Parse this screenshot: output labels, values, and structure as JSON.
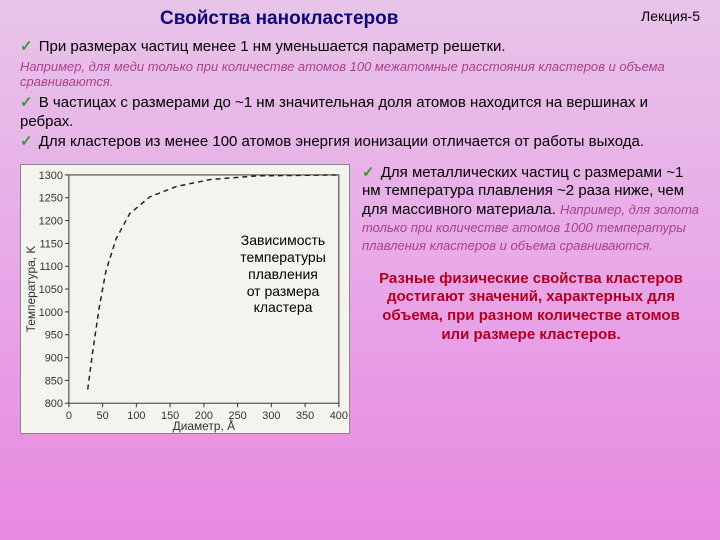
{
  "header": {
    "title": "Свойства нанокластеров",
    "lecture": "Лекция-5"
  },
  "bullets": {
    "b1": "При размерах частиц менее 1 нм уменьшается параметр решетки.",
    "b1_note": "Например, для меди только при количестве атомов 100 межатомные расстояния кластеров и объема сравниваются.",
    "b2": "В частицах с размерами до ~1 нм значительная доля атомов находится на вершинах и ребрах.",
    "b3": "Для кластеров из менее 100 атомов энергия ионизации отличается от работы выхода.",
    "b4_main": "Для металлических частиц с размерами ~1 нм температура плавления ~2 раза ниже, чем для массивного материала.",
    "b4_note": " Например, для золота только при количестве атомов 1000 температуры плавления кластеров и объема сравниваются."
  },
  "conclusion": "Разные физические свойства кластеров достигают значений, характерных для объема, при разном количестве атомов или размере кластеров.",
  "chart": {
    "caption_l1": "Зависимость",
    "caption_l2": "температуры",
    "caption_l3": "плавления",
    "caption_l4": "от размера",
    "caption_l5": "кластера",
    "y_label": "Температура, K",
    "x_label": "Диаметр, Å",
    "y_ticks": [
      "800",
      "850",
      "900",
      "950",
      "1000",
      "1050",
      "1100",
      "1150",
      "1200",
      "1250",
      "1300"
    ],
    "x_ticks": [
      "0",
      "50",
      "100",
      "150",
      "200",
      "250",
      "300",
      "350",
      "400"
    ],
    "y_min": 800,
    "y_max": 1300,
    "x_min": 0,
    "x_max": 400,
    "curve": [
      {
        "x": 28,
        "y": 830
      },
      {
        "x": 35,
        "y": 910
      },
      {
        "x": 45,
        "y": 1010
      },
      {
        "x": 55,
        "y": 1090
      },
      {
        "x": 70,
        "y": 1160
      },
      {
        "x": 90,
        "y": 1215
      },
      {
        "x": 120,
        "y": 1252
      },
      {
        "x": 160,
        "y": 1275
      },
      {
        "x": 210,
        "y": 1290
      },
      {
        "x": 280,
        "y": 1298
      },
      {
        "x": 400,
        "y": 1300
      }
    ],
    "plot_bg": "#f5f3ef",
    "axis_color": "#333333",
    "curve_color": "#222222"
  }
}
